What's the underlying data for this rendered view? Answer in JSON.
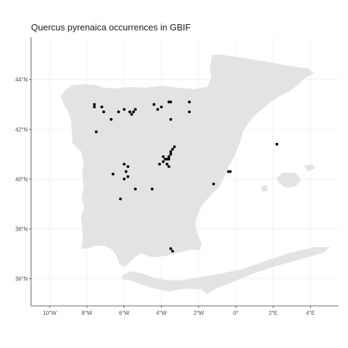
{
  "title": "Quercus pyrenaica occurrences in GBIF",
  "colors": {
    "land": "#e3e3e3",
    "point": "#000000",
    "grid": "#ebebeb",
    "background": "#ffffff"
  },
  "axes": {
    "x_ticks": [
      {
        "value": -10,
        "label": "10°W"
      },
      {
        "value": -8,
        "label": "8°W"
      },
      {
        "value": -6,
        "label": "6°W"
      },
      {
        "value": -4,
        "label": "4°W"
      },
      {
        "value": -2,
        "label": "2°W"
      },
      {
        "value": 0,
        "label": "0°"
      },
      {
        "value": 2,
        "label": "2°E"
      },
      {
        "value": 4,
        "label": "4°E"
      }
    ],
    "y_ticks": [
      {
        "value": 36,
        "label": "36°N"
      },
      {
        "value": 38,
        "label": "38°N"
      },
      {
        "value": 40,
        "label": "40°N"
      },
      {
        "value": 42,
        "label": "42°N"
      },
      {
        "value": 44,
        "label": "44°N"
      }
    ],
    "xlim": [
      -11,
      5.5
    ],
    "ylim": [
      34.9,
      45.7
    ]
  },
  "chart_data": {
    "type": "scatter",
    "title": "Quercus pyrenaica occurrences in GBIF",
    "xlabel": "",
    "ylabel": "",
    "xlim": [
      -11,
      5.5
    ],
    "ylim": [
      34.9,
      45.7
    ],
    "grid": true,
    "x": [
      -7.6,
      -7.6,
      -7.2,
      -7.1,
      -6.7,
      -6.3,
      -6.0,
      -5.7,
      -5.6,
      -5.6,
      -5.5,
      -5.4,
      -4.4,
      -4.2,
      -4.0,
      -3.6,
      -3.5,
      -3.5,
      -2.5,
      -2.5,
      -3.5,
      -7.5,
      -3.3,
      -3.4,
      -3.5,
      -3.6,
      -3.7,
      -3.8,
      -3.9,
      -4.1,
      -3.6,
      -3.7,
      -3.6,
      -3.9,
      -6.0,
      -5.8,
      -5.9,
      -5.8,
      -6.0,
      -6.6,
      -5.4,
      -4.5,
      -6.2,
      -3.5,
      -3.4,
      -1.2,
      -0.4,
      -0.3,
      2.2
    ],
    "y": [
      43.0,
      42.9,
      42.9,
      42.7,
      42.4,
      42.7,
      42.8,
      42.7,
      42.6,
      42.6,
      42.7,
      42.8,
      43.0,
      42.8,
      42.9,
      43.1,
      43.1,
      42.4,
      43.1,
      42.7,
      41.1,
      41.9,
      41.3,
      41.2,
      41.0,
      40.9,
      40.8,
      40.8,
      40.9,
      40.6,
      40.8,
      40.6,
      40.5,
      40.7,
      40.6,
      40.5,
      40.3,
      40.1,
      40.0,
      40.2,
      39.6,
      39.6,
      39.2,
      37.2,
      37.1,
      39.8,
      40.3,
      40.3,
      41.4
    ]
  }
}
